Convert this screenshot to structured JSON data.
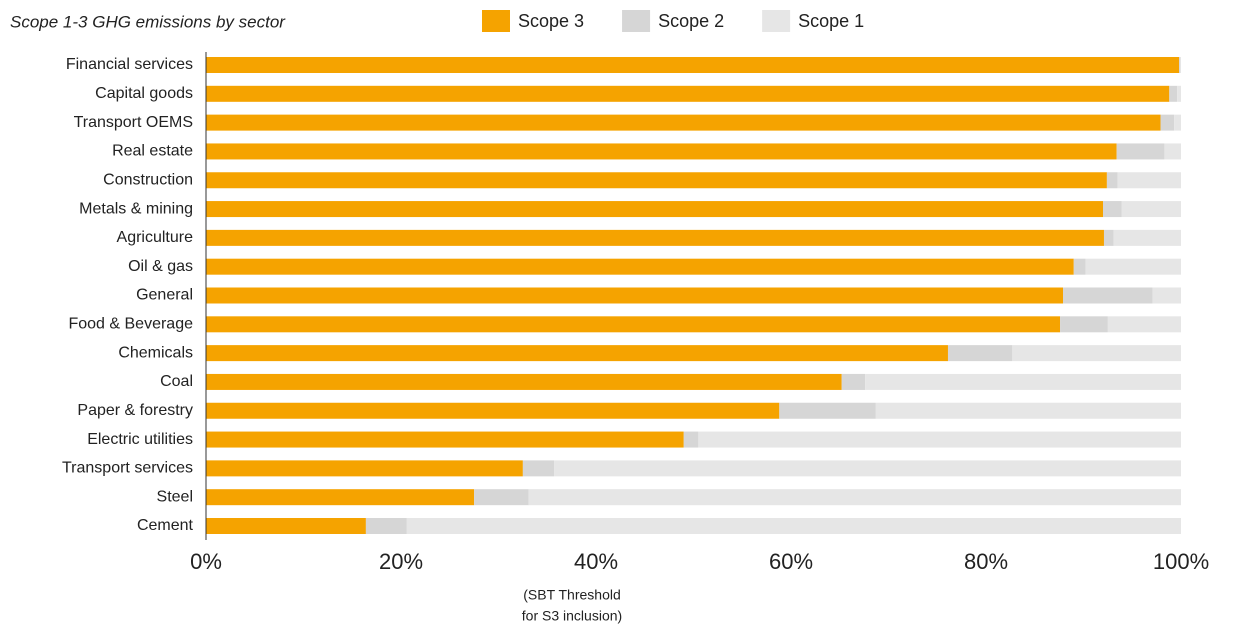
{
  "chart_data": {
    "type": "stacked-bar-horizontal",
    "title": "Scope 1-3 GHG emissions by sector",
    "categories": [
      "Financial services",
      "Capital goods",
      "Transport OEMS",
      "Real estate",
      "Construction",
      "Metals & mining",
      "Agriculture",
      "Oil & gas",
      "General",
      "Food & Beverage",
      "Chemicals",
      "Coal",
      "Paper & forestry",
      "Electric utilities",
      "Transport services",
      "Steel",
      "Cement"
    ],
    "series": [
      {
        "name": "Scope 3",
        "color": "#f5a300",
        "values": [
          99.8,
          98.8,
          97.9,
          93.4,
          92.4,
          92.0,
          92.1,
          89.0,
          87.9,
          87.6,
          76.1,
          65.2,
          58.8,
          49.0,
          32.5,
          27.5,
          16.4
        ]
      },
      {
        "name": "Scope 2",
        "color": "#d6d6d6",
        "values": [
          0.1,
          0.8,
          1.4,
          4.9,
          1.1,
          1.9,
          1.0,
          1.2,
          9.2,
          4.9,
          6.6,
          2.4,
          9.9,
          1.5,
          3.2,
          5.6,
          4.2
        ]
      },
      {
        "name": "Scope 1",
        "color": "#e6e6e6",
        "values": [
          0.1,
          0.4,
          0.7,
          1.7,
          6.5,
          6.1,
          6.9,
          9.8,
          2.9,
          7.5,
          17.3,
          32.4,
          31.3,
          49.5,
          64.3,
          66.9,
          79.4
        ]
      }
    ],
    "xlim": [
      0,
      100
    ],
    "xticks": [
      {
        "value": 0,
        "label": "0%"
      },
      {
        "value": 20,
        "label": "20%"
      },
      {
        "value": 40,
        "label": "40%"
      },
      {
        "value": 60,
        "label": "60%"
      },
      {
        "value": 80,
        "label": "80%"
      },
      {
        "value": 100,
        "label": "100%"
      }
    ],
    "annotation": {
      "x": 40,
      "lines": [
        "(SBT Threshold",
        "for S3 inclusion)"
      ]
    },
    "legend": "top",
    "grid": false
  }
}
